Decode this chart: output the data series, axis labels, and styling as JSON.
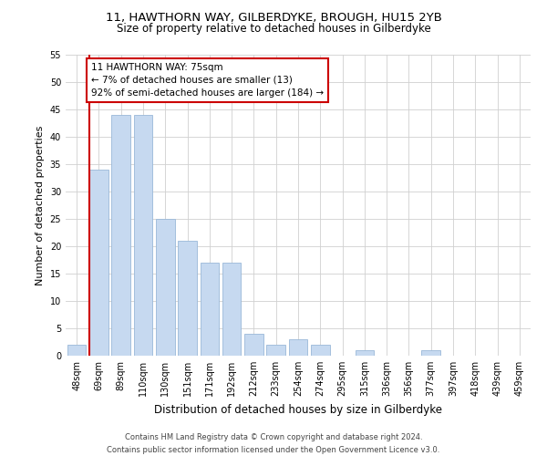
{
  "title": "11, HAWTHORN WAY, GILBERDYKE, BROUGH, HU15 2YB",
  "subtitle": "Size of property relative to detached houses in Gilberdyke",
  "xlabel": "Distribution of detached houses by size in Gilberdyke",
  "ylabel": "Number of detached properties",
  "categories": [
    "48sqm",
    "69sqm",
    "89sqm",
    "110sqm",
    "130sqm",
    "151sqm",
    "171sqm",
    "192sqm",
    "212sqm",
    "233sqm",
    "254sqm",
    "274sqm",
    "295sqm",
    "315sqm",
    "336sqm",
    "356sqm",
    "377sqm",
    "397sqm",
    "418sqm",
    "439sqm",
    "459sqm"
  ],
  "values": [
    2,
    34,
    44,
    44,
    25,
    21,
    17,
    17,
    4,
    2,
    3,
    2,
    0,
    1,
    0,
    0,
    1,
    0,
    0,
    0,
    0
  ],
  "bar_color": "#c6d9f0",
  "bar_edge_color": "#9ab8d8",
  "highlight_line_color": "#cc0000",
  "highlight_bar_index": 1,
  "annotation_text": "11 HAWTHORN WAY: 75sqm\n← 7% of detached houses are smaller (13)\n92% of semi-detached houses are larger (184) →",
  "annotation_box_color": "#ffffff",
  "annotation_box_edge": "#cc0000",
  "ylim": [
    0,
    55
  ],
  "yticks": [
    0,
    5,
    10,
    15,
    20,
    25,
    30,
    35,
    40,
    45,
    50,
    55
  ],
  "footnote1": "Contains HM Land Registry data © Crown copyright and database right 2024.",
  "footnote2": "Contains public sector information licensed under the Open Government Licence v3.0.",
  "background_color": "#ffffff",
  "grid_color": "#d0d0d0",
  "title_fontsize": 9.5,
  "subtitle_fontsize": 8.5,
  "ylabel_fontsize": 8,
  "xlabel_fontsize": 8.5,
  "tick_fontsize": 7,
  "annotation_fontsize": 7.5,
  "footnote_fontsize": 6
}
